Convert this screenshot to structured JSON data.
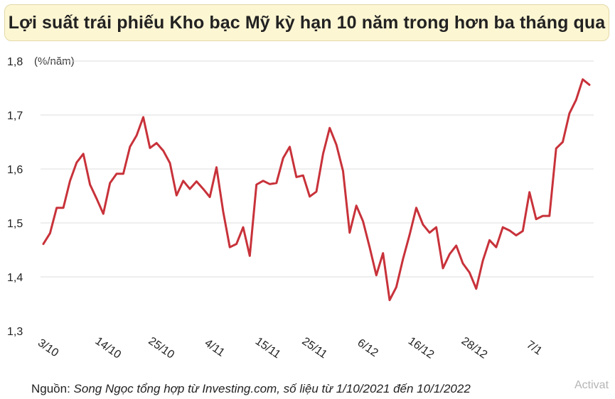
{
  "colors": {
    "line": "#c8323a",
    "title_bg": "#fdf6d3",
    "grid": "#dcdcdc"
  },
  "chart_data": {
    "type": "line",
    "title": "Lợi suất trái phiếu Kho bạc Mỹ kỳ hạn 10 năm trong hơn ba tháng qua",
    "unit_label": "(%/năm)",
    "ylim": [
      1.3,
      1.8
    ],
    "yticks": [
      "1,3",
      "1,4",
      "1,5",
      "1,6",
      "1,7",
      "1,8"
    ],
    "ytick_values": [
      1.3,
      1.4,
      1.5,
      1.6,
      1.7,
      1.8
    ],
    "xtick_labels": [
      "3/10",
      "14/10",
      "25/10",
      "4/11",
      "15/11",
      "25/11",
      "6/12",
      "16/12",
      "28/12",
      "7/1"
    ],
    "xtick_indices": [
      0,
      9,
      17,
      25,
      33,
      40,
      48,
      56,
      64,
      73
    ],
    "grid": true,
    "legend": "none",
    "series": [
      {
        "values": [
          1.461,
          1.481,
          1.528,
          1.528,
          1.578,
          1.612,
          1.628,
          1.571,
          1.545,
          1.517,
          1.574,
          1.591,
          1.591,
          1.641,
          1.662,
          1.696,
          1.639,
          1.648,
          1.634,
          1.611,
          1.551,
          1.578,
          1.563,
          1.577,
          1.563,
          1.548,
          1.603,
          1.521,
          1.455,
          1.461,
          1.492,
          1.439,
          1.571,
          1.578,
          1.572,
          1.574,
          1.62,
          1.641,
          1.585,
          1.588,
          1.549,
          1.558,
          1.628,
          1.676,
          1.645,
          1.596,
          1.482,
          1.532,
          1.503,
          1.455,
          1.403,
          1.444,
          1.357,
          1.381,
          1.433,
          1.478,
          1.528,
          1.497,
          1.482,
          1.492,
          1.416,
          1.442,
          1.458,
          1.425,
          1.408,
          1.378,
          1.43,
          1.468,
          1.455,
          1.492,
          1.486,
          1.477,
          1.485,
          1.557,
          1.507,
          1.513,
          1.513,
          1.638,
          1.65,
          1.703,
          1.728,
          1.766,
          1.756
        ]
      }
    ]
  },
  "source": {
    "prefix": "Nguồn: ",
    "text": "Song Ngọc tổng hợp từ Investing.com, số liệu từ 1/10/2021 đến 10/1/2022"
  },
  "watermark": "Activat"
}
